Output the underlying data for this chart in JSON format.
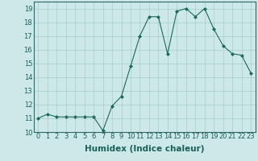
{
  "xlabel": "Humidex (Indice chaleur)",
  "ylabel": "",
  "x": [
    0,
    1,
    2,
    3,
    4,
    5,
    6,
    7,
    8,
    9,
    10,
    11,
    12,
    13,
    14,
    15,
    16,
    17,
    18,
    19,
    20,
    21,
    22,
    23
  ],
  "y": [
    11.0,
    11.3,
    11.1,
    11.1,
    11.1,
    11.1,
    11.1,
    10.1,
    11.9,
    12.6,
    14.8,
    17.0,
    18.4,
    18.4,
    15.7,
    18.8,
    19.0,
    18.4,
    19.0,
    17.5,
    16.3,
    15.7,
    15.6,
    14.3
  ],
  "line_color": "#1a6b5a",
  "marker": "D",
  "marker_size": 2.0,
  "bg_color": "#cce8e8",
  "grid_color": "#aacaca",
  "xlim": [
    -0.5,
    23.5
  ],
  "ylim": [
    10,
    19.5
  ],
  "yticks": [
    10,
    11,
    12,
    13,
    14,
    15,
    16,
    17,
    18,
    19
  ],
  "xticks": [
    0,
    1,
    2,
    3,
    4,
    5,
    6,
    7,
    8,
    9,
    10,
    11,
    12,
    13,
    14,
    15,
    16,
    17,
    18,
    19,
    20,
    21,
    22,
    23
  ],
  "xtick_labels": [
    "0",
    "1",
    "2",
    "3",
    "4",
    "5",
    "6",
    "7",
    "8",
    "9",
    "10",
    "11",
    "12",
    "13",
    "14",
    "15",
    "16",
    "17",
    "18",
    "19",
    "20",
    "21",
    "22",
    "23"
  ],
  "label_fontsize": 7.5,
  "tick_fontsize": 6.0
}
